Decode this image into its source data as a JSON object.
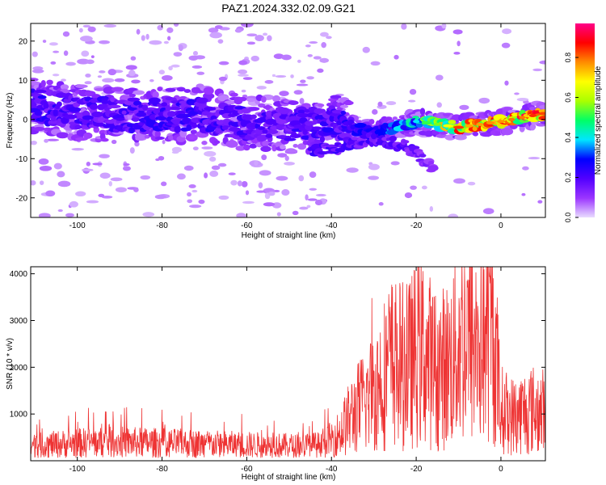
{
  "title": "PAZ1.2024.332.02.09.G21",
  "chart_data": [
    {
      "type": "heatmap",
      "xlabel": "Height of straight line (km)",
      "ylabel": "Frequency (Hz)",
      "xlim": [
        -111,
        10.5
      ],
      "ylim": [
        -25,
        24.5
      ],
      "xticks": [
        -100,
        -80,
        -60,
        -40,
        -20,
        0
      ],
      "yticks": [
        -20,
        -10,
        0,
        10,
        20
      ],
      "colorbar": {
        "label": "Normalized spectral amplitude",
        "range": [
          0.0,
          0.97
        ],
        "ticks": [
          0.0,
          0.2,
          0.4,
          0.6,
          0.8
        ],
        "tick_labels": [
          "0.0",
          "0.2",
          "0.4",
          "0.6",
          "0.8"
        ],
        "colors": [
          "#e9dcff",
          "#9b35ff",
          "#5200ff",
          "#0000ff",
          "#00e6ff",
          "#00ff66",
          "#aaff00",
          "#ffff00",
          "#ff8c00",
          "#ff0000",
          "#ff0088"
        ]
      },
      "ridge": [
        {
          "x": -110,
          "y": 3.5,
          "amp": 0.25
        },
        {
          "x": -100,
          "y": 2.0,
          "amp": 0.22
        },
        {
          "x": -90,
          "y": 1.0,
          "amp": 0.22
        },
        {
          "x": -80,
          "y": 1.5,
          "amp": 0.24
        },
        {
          "x": -70,
          "y": 1.0,
          "amp": 0.24
        },
        {
          "x": -60,
          "y": -1.0,
          "amp": 0.22
        },
        {
          "x": -50,
          "y": -1.5,
          "amp": 0.22
        },
        {
          "x": -40,
          "y": -1.0,
          "amp": 0.24
        },
        {
          "x": -30,
          "y": -3.5,
          "amp": 0.28
        },
        {
          "x": -20,
          "y": -0.5,
          "amp": 0.45
        },
        {
          "x": -10,
          "y": -2.0,
          "amp": 0.85
        },
        {
          "x": 0,
          "y": -0.5,
          "amp": 0.85
        },
        {
          "x": 10,
          "y": 1.5,
          "amp": 0.9
        }
      ],
      "branch": [
        {
          "x": -45,
          "y": -8.5,
          "amp": 0.2
        },
        {
          "x": -30,
          "y": -5.0,
          "amp": 0.2
        },
        {
          "x": -22,
          "y": -7.0,
          "amp": 0.18
        },
        {
          "x": -16,
          "y": -12.5,
          "amp": 0.12
        }
      ]
    },
    {
      "type": "line",
      "xlabel": "Height of straight line (km)",
      "ylabel": "SNR (10 * v/v)",
      "xlim": [
        -111,
        10.5
      ],
      "ylim": [
        0,
        4150
      ],
      "xticks": [
        -100,
        -80,
        -60,
        -40,
        -20,
        0
      ],
      "yticks": [
        1000,
        2000,
        3000,
        4000
      ],
      "color": "#ee3333",
      "envelope": [
        {
          "x": -110,
          "y": 320
        },
        {
          "x": -100,
          "y": 380
        },
        {
          "x": -90,
          "y": 400
        },
        {
          "x": -80,
          "y": 380
        },
        {
          "x": -70,
          "y": 360
        },
        {
          "x": -60,
          "y": 340
        },
        {
          "x": -50,
          "y": 320
        },
        {
          "x": -42,
          "y": 340
        },
        {
          "x": -38,
          "y": 600
        },
        {
          "x": -35,
          "y": 1000
        },
        {
          "x": -30,
          "y": 1500
        },
        {
          "x": -26,
          "y": 2100
        },
        {
          "x": -22,
          "y": 2000
        },
        {
          "x": -19,
          "y": 2400
        },
        {
          "x": -15,
          "y": 1900
        },
        {
          "x": -12,
          "y": 2100
        },
        {
          "x": -9,
          "y": 2650
        },
        {
          "x": -6,
          "y": 2500
        },
        {
          "x": -3,
          "y": 2700
        },
        {
          "x": -1.5,
          "y": 2500
        },
        {
          "x": 0,
          "y": 1100
        },
        {
          "x": 3,
          "y": 950
        },
        {
          "x": 7,
          "y": 1100
        },
        {
          "x": 10.5,
          "y": 1050
        }
      ],
      "peaks": [
        {
          "x": -19.3,
          "y": 4150
        },
        {
          "x": -8.0,
          "y": 3850
        },
        {
          "x": -22.2,
          "y": 3780
        },
        {
          "x": -30.5,
          "y": 3480
        },
        {
          "x": -2.2,
          "y": 3050
        },
        {
          "x": -97.4,
          "y": 1130
        }
      ]
    }
  ]
}
